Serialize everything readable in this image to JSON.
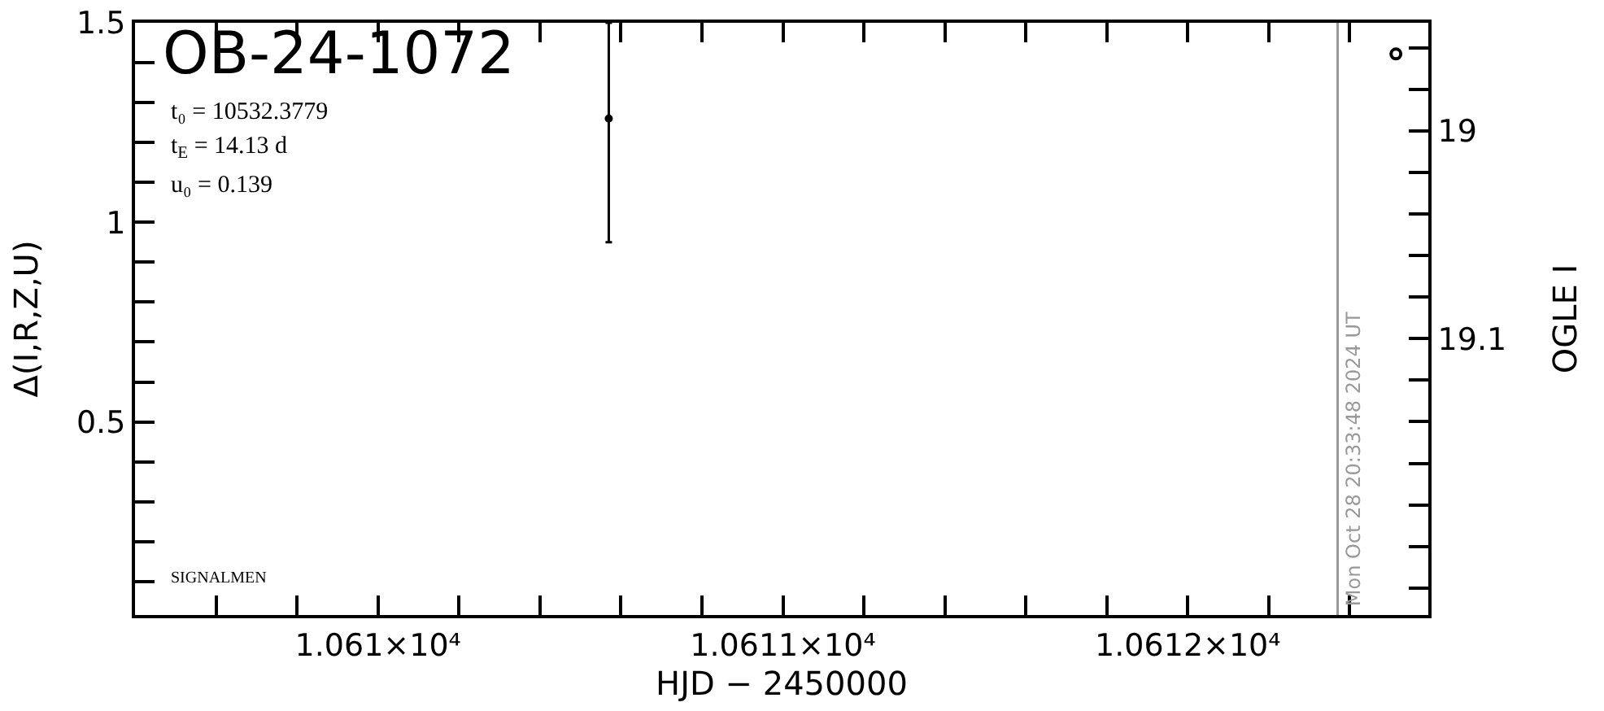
{
  "chart_data": {
    "type": "scatter",
    "title": "OB-24-1072",
    "xlabel": "HJD − 2450000",
    "ylabel": "Δ(I,R,Z,U)",
    "y2label": "OGLE I",
    "annotations": [
      "t₀ = 10532.3779",
      "t$_{E}$ = 14.13 d",
      "u₀ = 0.139",
      "SIGNALMEN",
      {
        "text": "Mon Oct 28 20:33:48 2024 UT",
        "x": 10612.37
      }
    ],
    "series": [
      {
        "color": "#000000",
        "x": [
          10610.57
        ],
        "values": [
          1.26
        ],
        "errors": [
          [
            0.95,
            1.5
          ]
        ]
      },
      {
        "color": "#000000",
        "x": [
          10612.514
        ],
        "values": [
          18.963
        ],
        "axis": "y2"
      }
    ],
    "xlim": [
      10609.4,
      10612.594
    ],
    "xticks": [
      {
        "value": 10609.6,
        "label": null
      },
      {
        "value": 10609.8,
        "label": null
      },
      {
        "value": 10610,
        "label": "1.061×10⁴"
      },
      {
        "value": 10610.2,
        "label": null
      },
      {
        "value": 10610.4,
        "label": null
      },
      {
        "value": 10610.6,
        "label": null
      },
      {
        "value": 10610.8,
        "label": null
      },
      {
        "value": 10611,
        "label": "1.0611×10⁴"
      },
      {
        "value": 10611.2,
        "label": null
      },
      {
        "value": 10611.4,
        "label": null
      },
      {
        "value": 10611.6,
        "label": null
      },
      {
        "value": 10611.8,
        "label": null
      },
      {
        "value": 10612,
        "label": "1.0612×10⁴"
      },
      {
        "value": 10612.2,
        "label": null
      },
      {
        "value": 10612.4,
        "label": null
      }
    ],
    "ylim": [
      0.016,
      1.5
    ],
    "yticks": [
      {
        "value": 0.1,
        "label": null
      },
      {
        "value": 0.2,
        "label": null
      },
      {
        "value": 0.3,
        "label": null
      },
      {
        "value": 0.4,
        "label": null
      },
      0.5,
      {
        "value": 0.6,
        "label": null
      },
      {
        "value": 0.7,
        "label": null
      },
      {
        "value": 0.8,
        "label": null
      },
      {
        "value": 0.9,
        "label": null
      },
      1,
      {
        "value": 1.1,
        "label": null
      },
      {
        "value": 1.2,
        "label": null
      },
      {
        "value": 1.3,
        "label": null
      },
      {
        "value": 1.4,
        "label": null
      },
      1.5
    ],
    "y2lim": [
      19.233,
      18.948
    ],
    "y2ticks": [
      {
        "value": 18.96,
        "label": null
      },
      {
        "value": 18.98,
        "label": null
      },
      19,
      {
        "value": 19.02,
        "label": null
      },
      {
        "value": 19.04,
        "label": null
      },
      {
        "value": 19.06,
        "label": null
      },
      {
        "value": 19.08,
        "label": null
      },
      19.1,
      {
        "value": 19.12,
        "label": null
      },
      {
        "value": 19.14,
        "label": null
      },
      {
        "value": 19.16,
        "label": null
      },
      {
        "value": 19.18,
        "label": null
      },
      {
        "value": 19.2,
        "label": null
      },
      {
        "value": 19.22,
        "label": null
      }
    ],
    "ref_lines": [
      {
        "axis": "x",
        "value": 10612.37,
        "color": "#999999"
      }
    ],
    "grid": false,
    "marker": "circle"
  }
}
